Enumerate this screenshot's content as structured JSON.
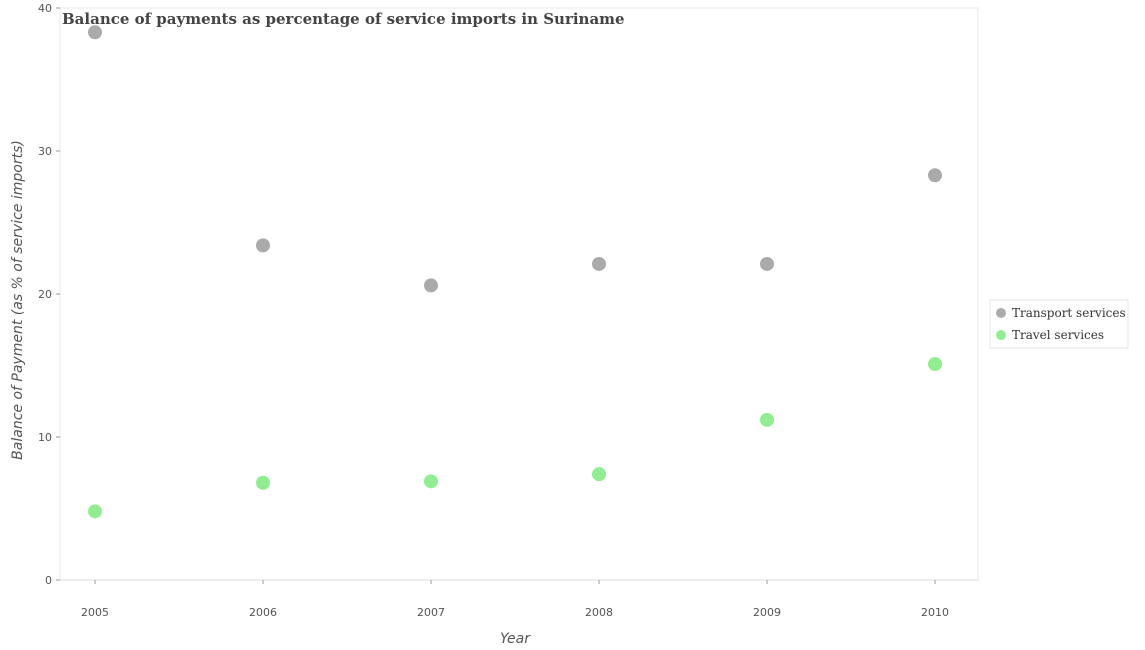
{
  "chart_data": {
    "type": "scatter",
    "title": "Balance of payments as percentage of service imports in Suriname",
    "xlabel": "Year",
    "ylabel": "Balance of Payment (as % of service imports)",
    "x": [
      "2005",
      "2006",
      "2007",
      "2008",
      "2009",
      "2010"
    ],
    "ylim": [
      0,
      40
    ],
    "yticks": [
      0,
      10,
      20,
      30,
      40
    ],
    "grid": false,
    "legend_position": "right",
    "series": [
      {
        "name": "Transport services",
        "color": "#aaaaaa",
        "values": [
          38.3,
          23.4,
          20.6,
          22.1,
          22.1,
          28.3
        ]
      },
      {
        "name": "Travel services",
        "color": "#90ee90",
        "values": [
          4.8,
          6.8,
          6.9,
          7.4,
          11.2,
          15.1
        ]
      }
    ]
  }
}
